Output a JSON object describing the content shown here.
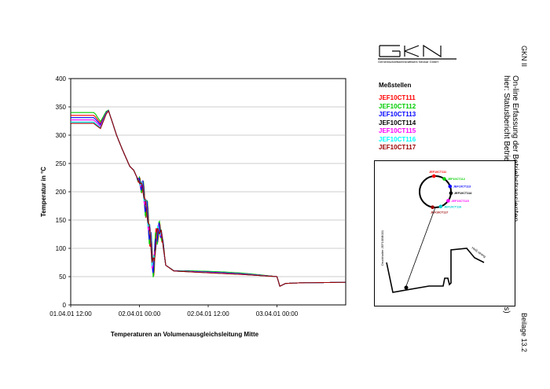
{
  "chart_data": {
    "type": "line",
    "xlabel": "Temperaturen an Volumenausgleichsleitung Mitte",
    "ylabel": "Temperatur in °C",
    "ylim": [
      0,
      400
    ],
    "yticks": [
      "0",
      "50",
      "100",
      "150",
      "200",
      "250",
      "300",
      "350",
      "400"
    ],
    "xlim_hours": [
      0,
      48
    ],
    "xticks": [
      {
        "h": 0,
        "label": "01.04.01 12:00"
      },
      {
        "h": 12,
        "label": "02.04.01 00:00"
      },
      {
        "h": 24,
        "label": "02.04.01 12:00"
      },
      {
        "h": 36,
        "label": "03.04.01 00:00"
      }
    ],
    "grid": true,
    "legend_title": "Meßstellen",
    "series": [
      {
        "name": "JEF10CT111",
        "color": "#ff0000",
        "offset": 12,
        "amp": 0.75,
        "phase": 0.0
      },
      {
        "name": "JEF10CT112",
        "color": "#00cc00",
        "offset": 17,
        "amp": 0.85,
        "phase": 0.6
      },
      {
        "name": "JEF10CT113",
        "color": "#0000ff",
        "offset": 8,
        "amp": 0.65,
        "phase": 1.1
      },
      {
        "name": "JEF10CT114",
        "color": "#000000",
        "offset": 0,
        "amp": 0.3,
        "phase": 1.9
      },
      {
        "name": "JEF10CT115",
        "color": "#ff00ff",
        "offset": 4,
        "amp": 0.45,
        "phase": 2.4
      },
      {
        "name": "JEF10CT116",
        "color": "#00ffff",
        "offset": 0,
        "amp": 0.35,
        "phase": 2.9
      },
      {
        "name": "JEF10CT117",
        "color": "#990000",
        "offset": -2,
        "amp": 0.2,
        "phase": 3.3
      }
    ],
    "base_curve": [
      [
        0,
        323
      ],
      [
        4,
        323
      ],
      [
        4.6,
        318
      ],
      [
        5.2,
        313
      ],
      [
        5.8,
        328
      ],
      [
        6.2,
        338
      ],
      [
        6.6,
        343
      ],
      [
        7.2,
        325
      ],
      [
        8,
        300
      ],
      [
        9,
        275
      ],
      [
        10.3,
        245
      ],
      [
        11,
        238
      ],
      [
        11.8,
        220
      ],
      [
        12.5,
        210
      ],
      [
        13.2,
        170
      ],
      [
        13.8,
        130
      ],
      [
        14.2,
        80
      ],
      [
        14.6,
        75
      ],
      [
        15,
        130
      ],
      [
        15.8,
        130
      ],
      [
        16.6,
        70
      ],
      [
        18,
        60
      ],
      [
        24,
        57
      ],
      [
        30,
        54
      ],
      [
        36,
        50
      ],
      [
        36.5,
        33
      ],
      [
        37.5,
        38
      ],
      [
        40,
        39
      ],
      [
        48,
        40
      ]
    ]
  },
  "header": {
    "company": "Gemeinschaftskernkraftwerk Neckar GmbH",
    "plant": "GKN II",
    "title_line1": "On-line Erfassung der Betriebstransienten",
    "title_line2": "hier: Statusbericht Betriebsjahr 2000/2001 (14. + 15. Betriebszyklus)",
    "appendix": "Beilage 13.2"
  },
  "inset": {
    "sensors": [
      {
        "label": "JEF10CT111",
        "color": "#ff0000"
      },
      {
        "label": "JEF10CT112",
        "color": "#00cc00"
      },
      {
        "label": "JEF10CT113",
        "color": "#0000ff"
      },
      {
        "label": "JEF10CT114",
        "color": "#000000"
      },
      {
        "label": "JEF10CT115",
        "color": "#ff00ff"
      },
      {
        "label": "JEF10CT116",
        "color": "#00cccc"
      },
      {
        "label": "JEF10CT117",
        "color": "#990000"
      }
    ],
    "left_label": "Druckhalter JEF10BB001",
    "right_label": "Heiß-strang"
  }
}
